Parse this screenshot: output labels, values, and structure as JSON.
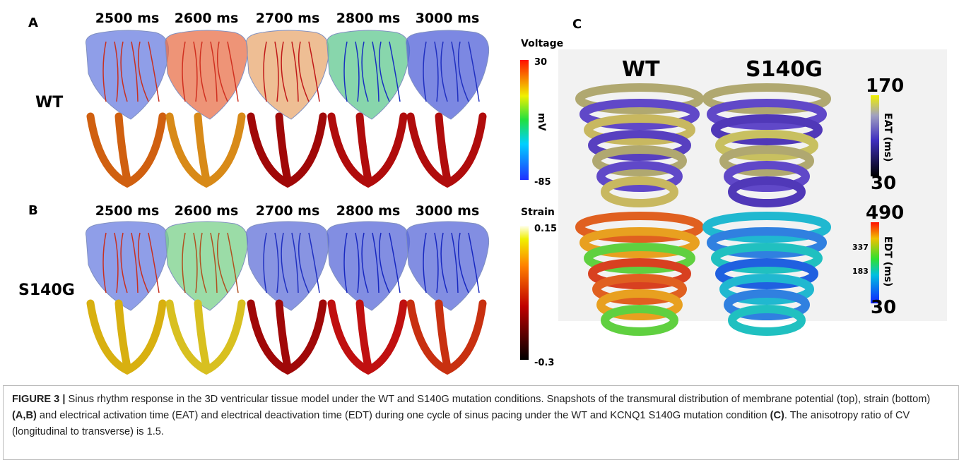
{
  "panel_a": {
    "label": "A",
    "times": [
      "2500 ms",
      "2600 ms",
      "2700 ms",
      "2800 ms",
      "3000 ms"
    ],
    "row_label": "WT",
    "colorbar": {
      "title": "Voltage",
      "max": "30",
      "min": "-85",
      "unit": "mV"
    }
  },
  "panel_b": {
    "label": "B",
    "times": [
      "2500 ms",
      "2600 ms",
      "2700 ms",
      "2800 ms",
      "3000 ms"
    ],
    "row_label": "S140G",
    "colorbar": {
      "title": "Strain",
      "max": "0.15",
      "min": "-0.3"
    }
  },
  "panel_c": {
    "label": "C",
    "columns": [
      "WT",
      "S140G"
    ],
    "eat_colorbar": {
      "title": "EAT (ms)",
      "max": "170",
      "min": "30"
    },
    "edt_colorbar": {
      "title": "EDT (ms)",
      "max": "490",
      "ticks": [
        "337",
        "183"
      ],
      "min": "30"
    }
  },
  "caption": {
    "figure_label": "FIGURE 3 |",
    "parts": [
      " Sinus rhythm response in the 3D ventricular tissue model under the WT and S140G mutation conditions. Snapshots of the transmural distribution of membrane potential (top), strain (bottom) ",
      "(A,B)",
      " and electrical activation time (EAT) and electrical deactivation time (EDT) during one cycle of sinus pacing under the WT and KCNQ1 S140G mutation condition ",
      "(C)",
      ". The anisotropy ratio of CV (longitudinal to transverse) is 1.5."
    ]
  }
}
